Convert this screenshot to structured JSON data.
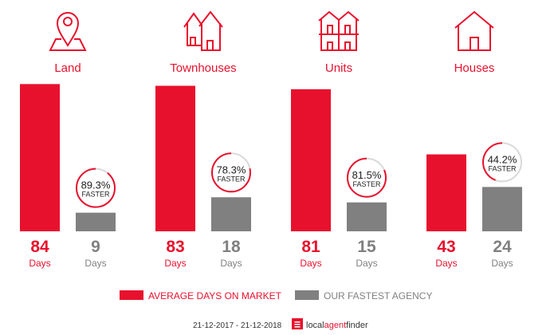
{
  "colors": {
    "average": "#e8112d",
    "agency": "#808080",
    "ring_track": "#d9d9d9"
  },
  "chart_data": {
    "type": "bar",
    "categories": [
      "Land",
      "Townhouses",
      "Units",
      "Houses"
    ],
    "icons": [
      "map-pin-icon",
      "townhouses-icon",
      "units-icon",
      "house-icon"
    ],
    "series": [
      {
        "name": "AVERAGE DAYS ON MARKET",
        "values": [
          84,
          83,
          81,
          43
        ]
      },
      {
        "name": "OUR FASTEST AGENCY",
        "values": [
          9,
          18,
          15,
          24
        ]
      }
    ],
    "unit_label": "Days",
    "faster": [
      {
        "percent": 89.3,
        "label": "89.3%",
        "text": "FASTER"
      },
      {
        "percent": 78.3,
        "label": "78.3%",
        "text": "FASTER"
      },
      {
        "percent": 81.5,
        "label": "81.5%",
        "text": "FASTER"
      },
      {
        "percent": 44.2,
        "label": "44.2%",
        "text": "FASTER"
      }
    ],
    "grid": false,
    "legend": "bottom"
  },
  "footer": {
    "date_range": "21-12-2017 - 21-12-2018",
    "brand_local": "local",
    "brand_agent": "agent",
    "brand_finder": "finder"
  }
}
